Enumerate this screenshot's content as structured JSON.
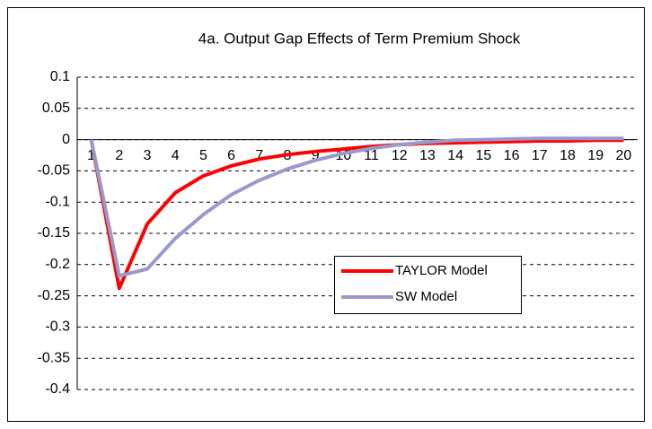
{
  "chart_data": {
    "type": "line",
    "title": "4a. Output Gap Effects of Term Premium Shock",
    "x": [
      1,
      2,
      3,
      4,
      5,
      6,
      7,
      8,
      9,
      10,
      11,
      12,
      13,
      14,
      15,
      16,
      17,
      18,
      19,
      20
    ],
    "xlim": [
      0.5,
      20.5
    ],
    "series": [
      {
        "name": "TAYLOR Model",
        "color": "#ff0000",
        "values": [
          0,
          -0.238,
          -0.135,
          -0.085,
          -0.058,
          -0.042,
          -0.031,
          -0.024,
          -0.019,
          -0.015,
          -0.011,
          -0.008,
          -0.006,
          -0.005,
          -0.004,
          -0.003,
          -0.002,
          -0.002,
          -0.001,
          -0.001
        ]
      },
      {
        "name": "SW Model",
        "color": "#9999cc",
        "values": [
          0,
          -0.218,
          -0.207,
          -0.158,
          -0.12,
          -0.088,
          -0.065,
          -0.047,
          -0.033,
          -0.022,
          -0.014,
          -0.008,
          -0.004,
          -0.001,
          0,
          0.001,
          0.002,
          0.002,
          0.002,
          0.002
        ]
      }
    ],
    "ylim": [
      -0.4,
      0.1
    ],
    "yticks": [
      0.1,
      0.05,
      0,
      -0.05,
      -0.1,
      -0.15,
      -0.2,
      -0.25,
      -0.3,
      -0.35,
      -0.4
    ],
    "grid": true
  }
}
